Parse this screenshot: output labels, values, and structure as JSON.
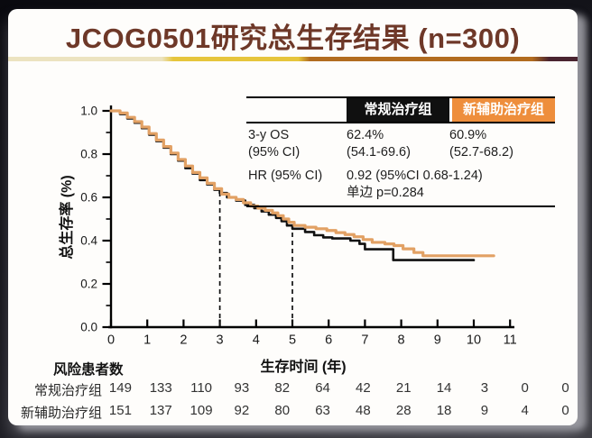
{
  "slide": {
    "title": "JCOG0501研究总生存结果 (n=300)",
    "title_color": "#6e3828",
    "underline_colors": [
      "#ece3c0",
      "#e6c53c",
      "#b26c1f",
      "#4a2430"
    ]
  },
  "chart_data": {
    "type": "line",
    "subtype": "kaplan-meier-step",
    "xlabel": "生存时间 (年)",
    "ylabel": "总生存率 (%)",
    "xlim": [
      0,
      11
    ],
    "ylim": [
      0.0,
      1.0
    ],
    "x_ticks": [
      0,
      1,
      2,
      3,
      4,
      5,
      6,
      7,
      8,
      9,
      10,
      11
    ],
    "y_ticks": [
      "0.0",
      "0.2",
      "0.4",
      "0.6",
      "0.8",
      "1.0"
    ],
    "y_minor_ticks": [
      0.1,
      0.3,
      0.5,
      0.7,
      0.9
    ],
    "grid": false,
    "series": [
      {
        "name": "常规治疗组",
        "color": "#111111",
        "points": [
          [
            0,
            1.0
          ],
          [
            0.25,
            0.985
          ],
          [
            0.45,
            0.965
          ],
          [
            0.65,
            0.945
          ],
          [
            0.85,
            0.92
          ],
          [
            1.05,
            0.89
          ],
          [
            1.25,
            0.86
          ],
          [
            1.45,
            0.83
          ],
          [
            1.65,
            0.8
          ],
          [
            1.85,
            0.77
          ],
          [
            2.05,
            0.735
          ],
          [
            2.25,
            0.71
          ],
          [
            2.45,
            0.68
          ],
          [
            2.65,
            0.66
          ],
          [
            2.85,
            0.635
          ],
          [
            3.0,
            0.62
          ],
          [
            3.2,
            0.6
          ],
          [
            3.45,
            0.585
          ],
          [
            3.7,
            0.565
          ],
          [
            3.95,
            0.55
          ],
          [
            4.15,
            0.535
          ],
          [
            4.35,
            0.52
          ],
          [
            4.55,
            0.505
          ],
          [
            4.7,
            0.49
          ],
          [
            4.85,
            0.47
          ],
          [
            5.0,
            0.455
          ],
          [
            5.35,
            0.44
          ],
          [
            5.6,
            0.425
          ],
          [
            5.85,
            0.415
          ],
          [
            6.1,
            0.41
          ],
          [
            6.6,
            0.4
          ],
          [
            6.85,
            0.385
          ],
          [
            7.0,
            0.36
          ],
          [
            7.78,
            0.31
          ],
          [
            10.0,
            0.31
          ]
        ]
      },
      {
        "name": "新辅助治疗组",
        "color": "#e2a164",
        "points": [
          [
            0,
            1.0
          ],
          [
            0.25,
            0.99
          ],
          [
            0.45,
            0.97
          ],
          [
            0.65,
            0.95
          ],
          [
            0.85,
            0.925
          ],
          [
            1.05,
            0.895
          ],
          [
            1.25,
            0.865
          ],
          [
            1.45,
            0.835
          ],
          [
            1.65,
            0.805
          ],
          [
            1.85,
            0.775
          ],
          [
            2.05,
            0.745
          ],
          [
            2.25,
            0.715
          ],
          [
            2.45,
            0.69
          ],
          [
            2.65,
            0.665
          ],
          [
            2.85,
            0.64
          ],
          [
            3.05,
            0.615
          ],
          [
            3.25,
            0.6
          ],
          [
            3.45,
            0.59
          ],
          [
            3.65,
            0.575
          ],
          [
            3.85,
            0.56
          ],
          [
            4.05,
            0.55
          ],
          [
            4.25,
            0.54
          ],
          [
            4.45,
            0.528
          ],
          [
            4.6,
            0.515
          ],
          [
            4.75,
            0.5
          ],
          [
            4.9,
            0.485
          ],
          [
            5.05,
            0.47
          ],
          [
            5.35,
            0.462
          ],
          [
            5.65,
            0.455
          ],
          [
            5.95,
            0.447
          ],
          [
            6.2,
            0.437
          ],
          [
            6.45,
            0.428
          ],
          [
            6.7,
            0.418
          ],
          [
            6.95,
            0.405
          ],
          [
            7.2,
            0.392
          ],
          [
            7.55,
            0.385
          ],
          [
            7.8,
            0.377
          ],
          [
            8.05,
            0.362
          ],
          [
            8.35,
            0.345
          ],
          [
            8.6,
            0.33
          ],
          [
            10.55,
            0.33
          ]
        ]
      }
    ],
    "reference_lines": [
      {
        "x": 3,
        "y_top": 0.62,
        "style": "dashed"
      },
      {
        "x": 5,
        "y_top": 0.46,
        "style": "dashed"
      }
    ],
    "legend_position": "table-top-right"
  },
  "stats_table": {
    "header": {
      "col1": "",
      "col2": "常规治疗组",
      "col3": "新辅助治疗组",
      "col2_bg": "#101010",
      "col3_bg": "#ee8e3c"
    },
    "os_row": {
      "label_line1": "3-y OS",
      "label_line2": "(95% CI)",
      "conventional_line1": "62.4%",
      "conventional_line2": "(54.1-69.6)",
      "neoadjuvant_line1": "60.9%",
      "neoadjuvant_line2": "(52.7-68.2)"
    },
    "hr_row": {
      "label": "HR (95% CI)",
      "value_line1": "0.92 (95%CI 0.68-1.24)",
      "value_line2": "单边 p=0.284"
    }
  },
  "risk_table": {
    "title": "风险患者数",
    "rows": [
      {
        "label": "常规治疗组",
        "counts": [
          149,
          133,
          110,
          93,
          82,
          64,
          42,
          21,
          14,
          3,
          0,
          0
        ]
      },
      {
        "label": "新辅助治疗组",
        "counts": [
          151,
          137,
          109,
          92,
          80,
          63,
          48,
          28,
          18,
          9,
          4,
          0
        ]
      }
    ]
  }
}
